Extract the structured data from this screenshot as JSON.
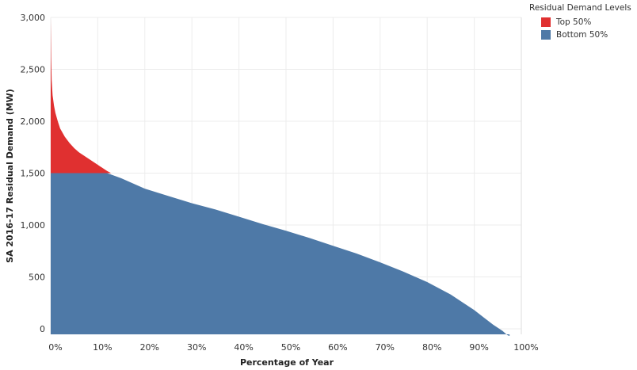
{
  "chart_data": {
    "type": "area",
    "xlabel": "Percentage of Year",
    "ylabel": "SA 2016-17 Residual Demand (MW)",
    "xlim": [
      0,
      100
    ],
    "ylim": [
      0,
      3000
    ],
    "x_ticks": [
      "0%",
      "10%",
      "20%",
      "30%",
      "40%",
      "50%",
      "60%",
      "70%",
      "80%",
      "90%",
      "100%"
    ],
    "y_ticks": [
      "0",
      "500",
      "1,000",
      "1,500",
      "2,000",
      "2,500",
      "3,000"
    ],
    "grid": true,
    "legend_position": "top-right",
    "split_value": 1500,
    "x": [
      0,
      0.1,
      0.2,
      0.4,
      0.7,
      1,
      1.5,
      2,
      3,
      4,
      5,
      6,
      8,
      10,
      12,
      15,
      20,
      25,
      30,
      35,
      40,
      45,
      50,
      55,
      60,
      65,
      70,
      75,
      80,
      85,
      90,
      92,
      94,
      96,
      97,
      97.5
    ],
    "y": [
      2990,
      2600,
      2400,
      2250,
      2150,
      2080,
      2000,
      1930,
      1850,
      1790,
      1740,
      1700,
      1640,
      1580,
      1520,
      1450,
      1350,
      1280,
      1210,
      1150,
      1080,
      1010,
      945,
      875,
      800,
      725,
      640,
      550,
      450,
      330,
      180,
      110,
      40,
      -20,
      -60,
      -70
    ],
    "series": [
      {
        "name": "Top 50%",
        "color": "#e03030"
      },
      {
        "name": "Bottom 50%",
        "color": "#4e79a7"
      }
    ]
  },
  "legend": {
    "title": "Residual Demand Levels",
    "items": [
      {
        "label": "Top 50%",
        "color": "#e03030"
      },
      {
        "label": "Bottom 50%",
        "color": "#4e79a7"
      }
    ]
  }
}
